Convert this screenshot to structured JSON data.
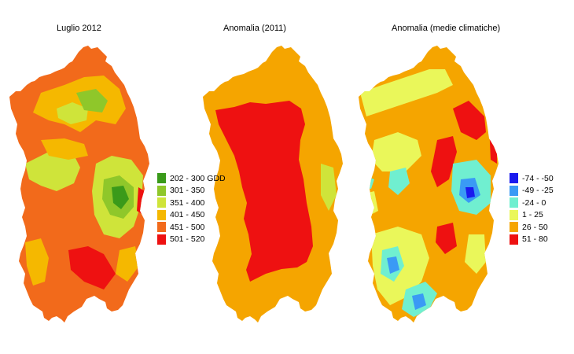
{
  "panels": [
    {
      "title": "Luglio 2012"
    },
    {
      "title": "Anomalia (2011)"
    },
    {
      "title": "Anomalia (medie climatiche)"
    }
  ],
  "legend_gdd": [
    {
      "label": "202 - 300 GDD",
      "color": "#3a9a1a"
    },
    {
      "label": "301 - 350",
      "color": "#8fc72a"
    },
    {
      "label": "351 - 400",
      "color": "#cfe43a"
    },
    {
      "label": "401 - 450",
      "color": "#f5b800"
    },
    {
      "label": "451 - 500",
      "color": "#f26a1b"
    },
    {
      "label": "501 - 520",
      "color": "#ee1111"
    }
  ],
  "legend_anomaly": [
    {
      "label": "-74 - -50",
      "color": "#1a1aee"
    },
    {
      "label": "-49 - -25",
      "color": "#3a9af5"
    },
    {
      "label": "-24 - 0",
      "color": "#70efd0"
    },
    {
      "label": "1 - 25",
      "color": "#eaf75a"
    },
    {
      "label": "26 - 50",
      "color": "#f5a500"
    },
    {
      "label": "51 - 80",
      "color": "#ee1111"
    }
  ]
}
